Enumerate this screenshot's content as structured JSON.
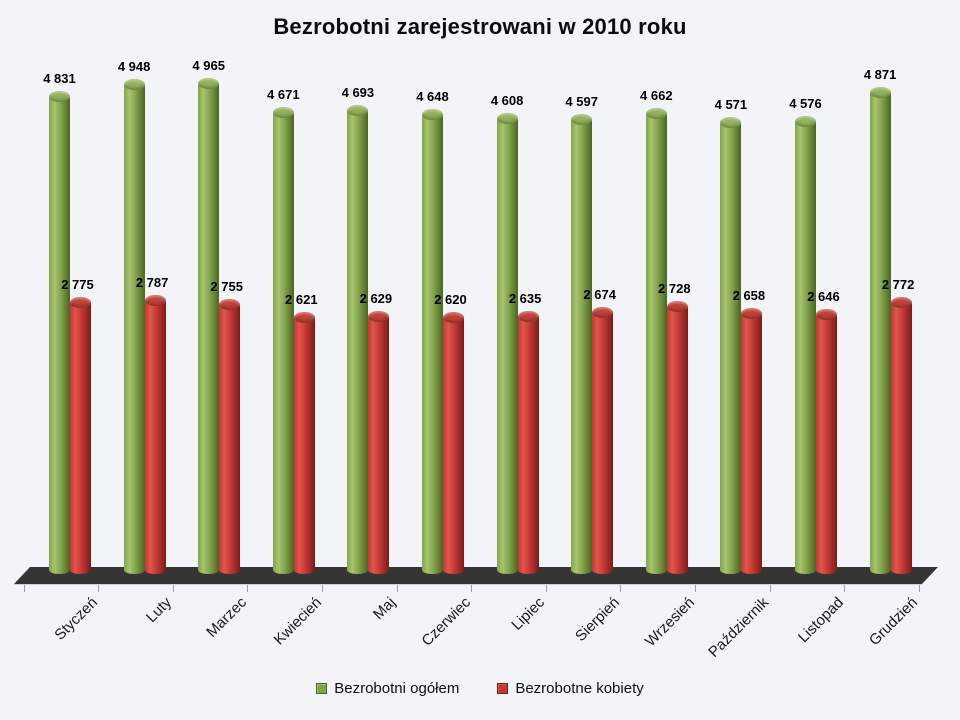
{
  "title": "Bezrobotni zarejestrowani w 2010 roku",
  "chart_data": {
    "type": "bar",
    "subtype": "cylinder-3d",
    "title": "Bezrobotni zarejestrowani w 2010 roku",
    "categories": [
      "Styczeń",
      "Luty",
      "Marzec",
      "Kwiecień",
      "Maj",
      "Czerwiec",
      "Lipiec",
      "Sierpień",
      "Wrzesień",
      "Październik",
      "Listopad",
      "Grudzień"
    ],
    "series": [
      {
        "name": "Bezrobotni ogółem",
        "values": [
          4831,
          4948,
          4965,
          4671,
          4693,
          4648,
          4608,
          4597,
          4662,
          4571,
          4576,
          4871
        ],
        "color": "#82A34C",
        "color_light": "#A9C46F",
        "color_dark": "#4A661F",
        "cap_color": "#93B25A"
      },
      {
        "name": "Bezrobotne kobiety",
        "values": [
          2775,
          2787,
          2755,
          2621,
          2629,
          2620,
          2635,
          2674,
          2728,
          2658,
          2646,
          2772
        ],
        "color": "#C23934",
        "color_light": "#E0564C",
        "color_dark": "#7E1B17",
        "cap_color": "#C24038"
      }
    ],
    "xlabel": "",
    "ylabel": "",
    "ylim": [
      0,
      4965
    ],
    "grid": false,
    "value_axis_visible": false,
    "data_labels": true,
    "label_thousands_separator": " ",
    "legend_position": "bottom",
    "floor_color": "#353535",
    "background_color": "#F3F4F8",
    "axis_tick_color": "#9AA0A8"
  }
}
